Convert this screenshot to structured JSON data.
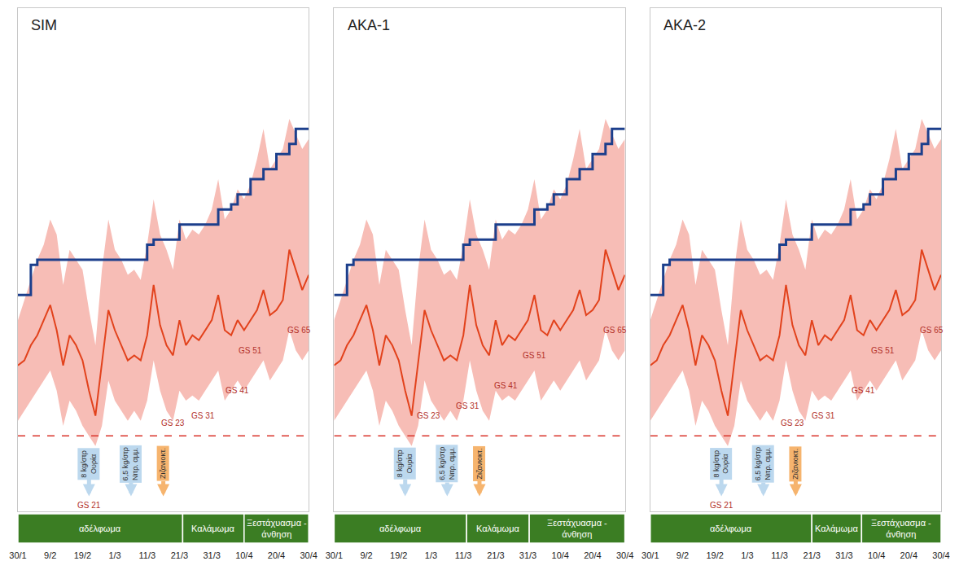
{
  "chart_data": [
    {
      "type": "line",
      "title": "SIM",
      "categories": [
        "30/1",
        null,
        null,
        null,
        null,
        "9/2",
        null,
        null,
        null,
        null,
        "19/2",
        null,
        null,
        null,
        null,
        "1/3",
        null,
        null,
        null,
        null,
        "11/3",
        null,
        null,
        null,
        null,
        "21/3",
        null,
        null,
        null,
        null,
        "31/3",
        null,
        null,
        null,
        null,
        "10/4",
        null,
        null,
        null,
        null,
        "20/4",
        null,
        null,
        null,
        null,
        "30/4"
      ],
      "series": [
        {
          "type": "band",
          "color": "#f7bdb6",
          "low": [
            18,
            20,
            22,
            24,
            26,
            28,
            24,
            17,
            22,
            20,
            17,
            15,
            13,
            17,
            26,
            22,
            20,
            18,
            20,
            18,
            22,
            30,
            24,
            20,
            18,
            24,
            22,
            23,
            22,
            24,
            26,
            28,
            22,
            24,
            26,
            24,
            26,
            28,
            30,
            26,
            28,
            30,
            36,
            32,
            30,
            32
          ],
          "high": [
            38,
            42,
            46,
            50,
            53,
            58,
            55,
            45,
            52,
            50,
            48,
            40,
            33,
            48,
            58,
            52,
            50,
            47,
            48,
            46,
            53,
            62,
            55,
            52,
            48,
            58,
            54,
            56,
            55,
            57,
            60,
            66,
            58,
            60,
            64,
            62,
            65,
            70,
            76,
            68,
            70,
            72,
            78,
            75,
            72,
            74
          ]
        },
        {
          "type": "line",
          "color": "#e2421c",
          "values": [
            29,
            30,
            33,
            35,
            38,
            41,
            36,
            29,
            35,
            33,
            30,
            24,
            19,
            30,
            40,
            36,
            33,
            30,
            31,
            30,
            35,
            45,
            37,
            33,
            31,
            38,
            33,
            35,
            34,
            36,
            38,
            43,
            36,
            35,
            38,
            36,
            38,
            40,
            44,
            39,
            40,
            42,
            52,
            48,
            44,
            47
          ]
        },
        {
          "type": "step",
          "color": "#1c3f8c",
          "values": [
            43,
            43,
            49,
            50,
            50,
            50,
            50,
            50,
            50,
            50,
            50,
            50,
            50,
            50,
            50,
            50,
            50,
            50,
            50,
            50,
            53,
            54,
            54,
            54,
            54,
            57,
            57,
            57,
            57,
            57,
            57,
            60,
            60,
            61,
            63,
            63,
            66,
            66,
            68,
            68,
            71,
            71,
            73,
            76,
            76,
            76
          ]
        }
      ],
      "reference_line": {
        "value": 15,
        "color": "#d9342b",
        "line_style": "dash"
      },
      "annotations": [
        {
          "text": [
            "8 kg/στρ",
            "Ουρία"
          ],
          "x": 11,
          "y": 3,
          "color": "#bcd8ee"
        },
        {
          "text": [
            "6,5 kg/στρ",
            "Νιτρ. αμμ."
          ],
          "x": 17.5,
          "y": 3,
          "color": "#bcd8ee"
        },
        {
          "text": [
            "Ζιζανιοκτ."
          ],
          "x": 22.5,
          "y": 3,
          "color": "#f6b46e"
        }
      ],
      "stage_labels": [
        {
          "text": "GS 21",
          "x": 11,
          "y": 1.2
        },
        {
          "text": "GS 23",
          "x": 24,
          "y": 17.5
        },
        {
          "text": "GS 31",
          "x": 28.7,
          "y": 19
        },
        {
          "text": "GS 41",
          "x": 34,
          "y": 24
        },
        {
          "text": "GS 51",
          "x": 36,
          "y": 32
        },
        {
          "text": "GS 65",
          "x": 43.5,
          "y": 36
        }
      ],
      "phases": [
        {
          "label": "αδέλφωμα",
          "start": 0,
          "end": 25.5,
          "color": "#3b7d23"
        },
        {
          "label": "Καλάμωμα",
          "start": 25.5,
          "end": 35,
          "color": "#3b7d23"
        },
        {
          "label": "Ξεστάχυασμα - άνθηση",
          "start": 35,
          "end": 45,
          "color": "#3b7d23"
        }
      ],
      "ylim": [
        0,
        100
      ],
      "yticks": [],
      "tick_labels": "x",
      "grid": false
    },
    {
      "type": "line",
      "title": "AKA-1",
      "categories": [
        "30/1",
        null,
        null,
        null,
        null,
        "9/2",
        null,
        null,
        null,
        null,
        "19/2",
        null,
        null,
        null,
        null,
        "1/3",
        null,
        null,
        null,
        null,
        "11/3",
        null,
        null,
        null,
        null,
        "21/3",
        null,
        null,
        null,
        null,
        "31/3",
        null,
        null,
        null,
        null,
        "10/4",
        null,
        null,
        null,
        null,
        "20/4",
        null,
        null,
        null,
        null,
        "30/4"
      ],
      "series": [
        {
          "type": "band",
          "color": "#f7bdb6",
          "low": [
            18,
            20,
            22,
            24,
            26,
            28,
            24,
            17,
            22,
            20,
            17,
            15,
            13,
            17,
            26,
            22,
            20,
            18,
            20,
            18,
            22,
            30,
            24,
            20,
            18,
            24,
            22,
            23,
            22,
            24,
            26,
            28,
            22,
            24,
            26,
            24,
            26,
            28,
            30,
            26,
            28,
            30,
            36,
            32,
            30,
            32
          ],
          "high": [
            38,
            42,
            46,
            50,
            53,
            58,
            55,
            45,
            52,
            50,
            48,
            40,
            33,
            48,
            58,
            52,
            50,
            47,
            48,
            46,
            53,
            62,
            55,
            52,
            48,
            58,
            54,
            56,
            55,
            57,
            60,
            66,
            58,
            60,
            64,
            62,
            65,
            70,
            76,
            68,
            70,
            72,
            78,
            75,
            72,
            74
          ]
        },
        {
          "type": "line",
          "color": "#e2421c",
          "values": [
            29,
            30,
            33,
            35,
            38,
            41,
            36,
            29,
            35,
            33,
            30,
            24,
            19,
            30,
            40,
            36,
            33,
            30,
            31,
            30,
            35,
            45,
            37,
            33,
            31,
            38,
            33,
            35,
            34,
            36,
            38,
            43,
            36,
            35,
            38,
            36,
            38,
            40,
            44,
            39,
            40,
            42,
            52,
            48,
            44,
            47
          ]
        },
        {
          "type": "step",
          "color": "#1c3f8c",
          "values": [
            43,
            43,
            49,
            50,
            50,
            50,
            50,
            50,
            50,
            50,
            50,
            50,
            50,
            50,
            50,
            50,
            50,
            50,
            50,
            50,
            53,
            54,
            54,
            54,
            54,
            57,
            57,
            57,
            57,
            57,
            57,
            60,
            60,
            61,
            63,
            63,
            66,
            66,
            68,
            68,
            71,
            71,
            73,
            76,
            76,
            76
          ]
        }
      ],
      "reference_line": {
        "value": 15,
        "color": "#d9342b",
        "line_style": "dash"
      },
      "annotations": [
        {
          "text": [
            "8 kg/στρ",
            "Ουρία"
          ],
          "x": 11,
          "y": 3,
          "color": "#bcd8ee"
        },
        {
          "text": [
            "6,5 kg/στρ",
            "Νιτρ. αμμ."
          ],
          "x": 17.5,
          "y": 3,
          "color": "#bcd8ee"
        },
        {
          "text": [
            "Ζιζανιοκτ."
          ],
          "x": 22.5,
          "y": 3,
          "color": "#f6b46e"
        }
      ],
      "stage_labels": [
        {
          "text": "GS 23",
          "x": 14.6,
          "y": 19
        },
        {
          "text": "GS 31",
          "x": 20.7,
          "y": 21
        },
        {
          "text": "GS 41",
          "x": 26.6,
          "y": 25
        },
        {
          "text": "GS 51",
          "x": 31,
          "y": 31
        },
        {
          "text": "GS 65",
          "x": 43.5,
          "y": 36
        }
      ],
      "phases": [
        {
          "label": "αδέλφωμα",
          "start": 0,
          "end": 20.5,
          "color": "#3b7d23"
        },
        {
          "label": "Καλάμωμα",
          "start": 20.5,
          "end": 30.2,
          "color": "#3b7d23"
        },
        {
          "label": "Ξεστάχυασμα - άνθηση",
          "start": 30.2,
          "end": 45,
          "color": "#3b7d23"
        }
      ],
      "ylim": [
        0,
        100
      ],
      "yticks": [],
      "tick_labels": "x",
      "grid": false
    },
    {
      "type": "line",
      "title": "AKA-2",
      "categories": [
        "30/1",
        null,
        null,
        null,
        null,
        "9/2",
        null,
        null,
        null,
        null,
        "19/2",
        null,
        null,
        null,
        null,
        "1/3",
        null,
        null,
        null,
        null,
        "11/3",
        null,
        null,
        null,
        null,
        "21/3",
        null,
        null,
        null,
        null,
        "31/3",
        null,
        null,
        null,
        null,
        "10/4",
        null,
        null,
        null,
        null,
        "20/4",
        null,
        null,
        null,
        null,
        "30/4"
      ],
      "series": [
        {
          "type": "band",
          "color": "#f7bdb6",
          "low": [
            18,
            20,
            22,
            24,
            26,
            28,
            24,
            17,
            22,
            20,
            17,
            15,
            13,
            17,
            26,
            22,
            20,
            18,
            20,
            18,
            22,
            30,
            24,
            20,
            18,
            24,
            22,
            23,
            22,
            24,
            26,
            28,
            22,
            24,
            26,
            24,
            26,
            28,
            30,
            26,
            28,
            30,
            36,
            32,
            30,
            32
          ],
          "high": [
            38,
            42,
            46,
            50,
            53,
            58,
            55,
            45,
            52,
            50,
            48,
            40,
            33,
            48,
            58,
            52,
            50,
            47,
            48,
            46,
            53,
            62,
            55,
            52,
            48,
            58,
            54,
            56,
            55,
            57,
            60,
            66,
            58,
            60,
            64,
            62,
            65,
            70,
            76,
            68,
            70,
            72,
            78,
            75,
            72,
            74
          ]
        },
        {
          "type": "line",
          "color": "#e2421c",
          "values": [
            29,
            30,
            33,
            35,
            38,
            41,
            36,
            29,
            35,
            33,
            30,
            24,
            19,
            30,
            40,
            36,
            33,
            30,
            31,
            30,
            35,
            45,
            37,
            33,
            31,
            38,
            33,
            35,
            34,
            36,
            38,
            43,
            36,
            35,
            38,
            36,
            38,
            40,
            44,
            39,
            40,
            42,
            52,
            48,
            44,
            47
          ]
        },
        {
          "type": "step",
          "color": "#1c3f8c",
          "values": [
            43,
            43,
            49,
            50,
            50,
            50,
            50,
            50,
            50,
            50,
            50,
            50,
            50,
            50,
            50,
            50,
            50,
            50,
            50,
            50,
            53,
            54,
            54,
            54,
            54,
            57,
            57,
            57,
            57,
            57,
            57,
            60,
            60,
            61,
            63,
            63,
            66,
            66,
            68,
            68,
            71,
            71,
            73,
            76,
            76,
            76
          ]
        }
      ],
      "reference_line": {
        "value": 15,
        "color": "#d9342b",
        "line_style": "dash"
      },
      "annotations": [
        {
          "text": [
            "8 kg/στρ",
            "Ουρία"
          ],
          "x": 11,
          "y": 3,
          "color": "#bcd8ee"
        },
        {
          "text": [
            "6,5 kg/στρ",
            "Νιτρ. αμμ."
          ],
          "x": 17.5,
          "y": 3,
          "color": "#bcd8ee"
        },
        {
          "text": [
            "Ζιζανιοκτ."
          ],
          "x": 22.5,
          "y": 3,
          "color": "#f6b46e"
        }
      ],
      "stage_labels": [
        {
          "text": "GS 21",
          "x": 11,
          "y": 1.2
        },
        {
          "text": "GS 23",
          "x": 22,
          "y": 17.5
        },
        {
          "text": "GS 31",
          "x": 26.8,
          "y": 19
        },
        {
          "text": "GS 41",
          "x": 33,
          "y": 24
        },
        {
          "text": "GS 51",
          "x": 36,
          "y": 32
        },
        {
          "text": "GS 65",
          "x": 43.5,
          "y": 36
        }
      ],
      "phases": [
        {
          "label": "αδέλφωμα",
          "start": 0,
          "end": 25,
          "color": "#3b7d23"
        },
        {
          "label": "Καλάμωμα",
          "start": 25,
          "end": 32.7,
          "color": "#3b7d23"
        },
        {
          "label": "Ξεστάχυασμα - άνθηση",
          "start": 32.7,
          "end": 45,
          "color": "#3b7d23"
        }
      ],
      "ylim": [
        0,
        100
      ],
      "yticks": [],
      "tick_labels": "x",
      "grid": false
    }
  ]
}
